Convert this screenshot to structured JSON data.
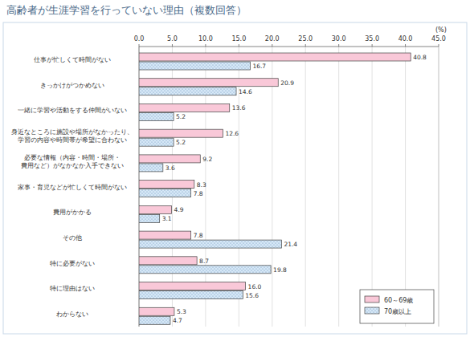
{
  "chart_data": {
    "type": "bar",
    "orientation": "horizontal",
    "title": "高齢者が生涯学習を行っていない理由（複数回答）",
    "xlabel": "(%)",
    "categories": [
      "仕事が忙しくて時間がない",
      "きっかけがつかめない",
      "一緒に学習や活動をする仲間がいない",
      "身近なところに施設や場所がなかったり、\n学習の内容や時間帯が希望に合わない",
      "必要な情報（内容・時間・場所・\n費用など）がなかなか入手できない",
      "家事・育児などが忙しくて時間がない",
      "費用がかかる",
      "その他",
      "特に必要がない",
      "特に理由はない",
      "わからない"
    ],
    "series": [
      {
        "name": "60～69歳",
        "color": "#f9c8d8",
        "values": [
          40.8,
          20.9,
          13.6,
          12.6,
          9.2,
          8.3,
          4.9,
          7.8,
          8.7,
          16.0,
          5.3
        ],
        "value_labels": [
          "40.8",
          "20.9",
          "13.6",
          "12.6",
          "9.2",
          "8.3",
          "4.9",
          "7.8",
          "8.7",
          "16.0",
          "5.3"
        ]
      },
      {
        "name": "70歳以上",
        "color": "#d6e8f7",
        "marker": "dots",
        "values": [
          16.7,
          14.6,
          5.2,
          5.2,
          3.6,
          7.8,
          3.1,
          21.4,
          19.8,
          15.6,
          4.7
        ]
      }
    ],
    "xlim": [
      0,
      45
    ],
    "xticks": [
      {
        "value": 0,
        "label": "0.0"
      },
      {
        "value": 5,
        "label": "5.0"
      },
      {
        "value": 10,
        "label": "10.0"
      },
      {
        "value": 15,
        "label": "15.0"
      },
      {
        "value": 20,
        "label": "20.0"
      },
      {
        "value": 25,
        "label": "25.0"
      },
      {
        "value": 30,
        "label": "30.0"
      },
      {
        "value": 35,
        "label": "35.0"
      },
      {
        "value": 40,
        "label": "40.0"
      },
      {
        "value": 45,
        "label": "45.0"
      }
    ],
    "grid": true,
    "data_labels": true,
    "legend": "bottom-right"
  }
}
